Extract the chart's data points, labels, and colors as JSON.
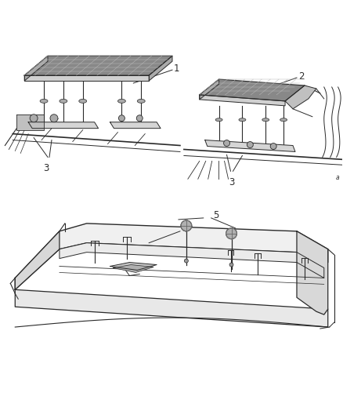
{
  "bg_color": "#ffffff",
  "line_color": "#2a2a2a",
  "fig_width": 4.38,
  "fig_height": 5.33,
  "dpi": 100,
  "label_fontsize": 8.5
}
